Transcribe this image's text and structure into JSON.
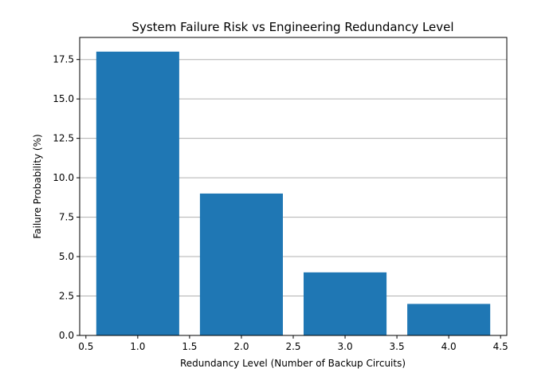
{
  "chart_data": {
    "type": "bar",
    "title": "System Failure Risk vs Engineering Redundancy Level",
    "xlabel": "Redundancy Level (Number of Backup Circuits)",
    "ylabel": "Failure Probability (%)",
    "x": [
      1,
      2,
      3,
      4
    ],
    "values": [
      18,
      9,
      4,
      2
    ],
    "bar_width": 0.8,
    "xlim": [
      0.44,
      4.56
    ],
    "ylim": [
      0,
      18.9
    ],
    "xticks": [
      "0.5",
      "1.0",
      "1.5",
      "2.0",
      "2.5",
      "3.0",
      "3.5",
      "4.0",
      "4.5"
    ],
    "yticks": [
      "0.0",
      "2.5",
      "5.0",
      "7.5",
      "10.0",
      "12.5",
      "15.0",
      "17.5"
    ],
    "grid": "horizontal",
    "legend": "none",
    "bar_color": "#1f77b4",
    "grid_color": "#b0b0b0"
  }
}
